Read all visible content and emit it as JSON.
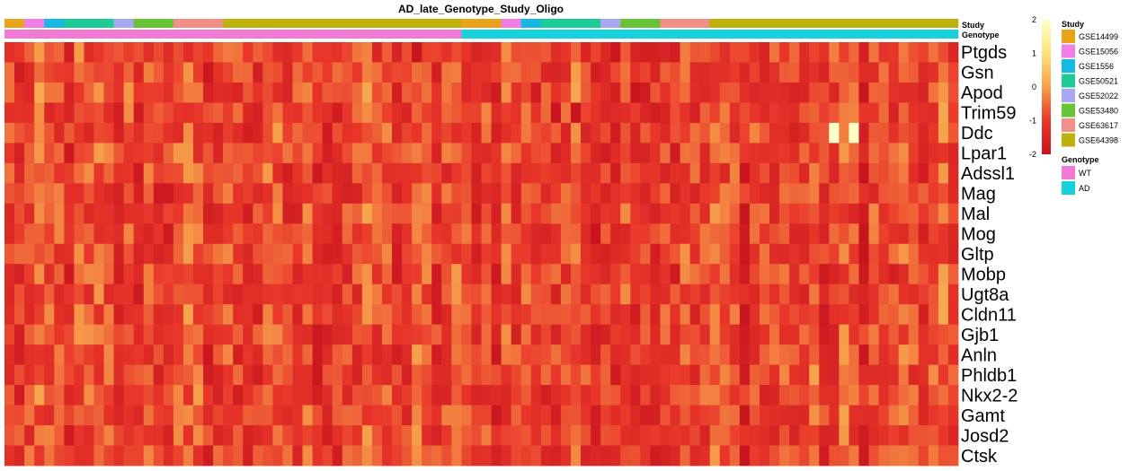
{
  "chart_data": {
    "type": "heatmap",
    "title": "AD_late_Genotype_Study_Oligo",
    "annotation_labels": {
      "study": "Study",
      "genotype": "Genotype"
    },
    "n_samples": 96,
    "genes": [
      "Ptgds",
      "Gsn",
      "Apod",
      "Trim59",
      "Ddc",
      "Lpar1",
      "Adssl1",
      "Mag",
      "Mal",
      "Mog",
      "Gltp",
      "Mobp",
      "Ugt8a",
      "Cldn11",
      "Gjb1",
      "Anln",
      "Phldb1",
      "Nkx2-2",
      "Gamt",
      "Josd2",
      "Ctsk"
    ],
    "study_segments": [
      {
        "study": "GSE14499",
        "count": 2
      },
      {
        "study": "GSE15056",
        "count": 2
      },
      {
        "study": "GSE1556",
        "count": 2
      },
      {
        "study": "GSE50521",
        "count": 5
      },
      {
        "study": "GSE52022",
        "count": 2
      },
      {
        "study": "GSE53480",
        "count": 4
      },
      {
        "study": "GSE63617",
        "count": 5
      },
      {
        "study": "GSE64398",
        "count": 24
      },
      {
        "study": "GSE14499",
        "count": 4
      },
      {
        "study": "GSE15056",
        "count": 2
      },
      {
        "study": "GSE1556",
        "count": 2
      },
      {
        "study": "GSE50521",
        "count": 6
      },
      {
        "study": "GSE52022",
        "count": 2
      },
      {
        "study": "GSE53480",
        "count": 4
      },
      {
        "study": "GSE63617",
        "count": 5
      },
      {
        "study": "GSE64398",
        "count": 25
      }
    ],
    "genotype_segments": [
      {
        "genotype": "WT",
        "count": 46
      },
      {
        "genotype": "AD",
        "count": 50
      }
    ],
    "color_scale": {
      "min": -2,
      "max": 2,
      "ticks": [
        2,
        1,
        0,
        -1,
        -2
      ],
      "stops": [
        {
          "value": -2,
          "color": "#c8141e"
        },
        {
          "value": -1,
          "color": "#e8362a"
        },
        {
          "value": 0,
          "color": "#f7a04a"
        },
        {
          "value": 1,
          "color": "#fde27d"
        },
        {
          "value": 2,
          "color": "#ffffcc"
        }
      ]
    },
    "legends": {
      "study": {
        "title": "Study",
        "items": [
          {
            "label": "GSE14499",
            "color": "#e8a318"
          },
          {
            "label": "GSE15056",
            "color": "#f07ee6"
          },
          {
            "label": "GSE1556",
            "color": "#16b8e4"
          },
          {
            "label": "GSE50521",
            "color": "#1dcb96"
          },
          {
            "label": "GSE52022",
            "color": "#a9a7f0"
          },
          {
            "label": "GSE53480",
            "color": "#66c436"
          },
          {
            "label": "GSE63617",
            "color": "#f29088"
          },
          {
            "label": "GSE64398",
            "color": "#bdb20c"
          }
        ]
      },
      "genotype": {
        "title": "Genotype",
        "items": [
          {
            "label": "WT",
            "color": "#f17ad4"
          },
          {
            "label": "AD",
            "color": "#17d2dc"
          }
        ]
      }
    },
    "notable_values": [
      {
        "gene": "Ddc",
        "sample": 83,
        "value": 2.0
      },
      {
        "gene": "Ddc",
        "sample": 85,
        "value": 1.9
      },
      {
        "gene": "Trim59",
        "sample": 55,
        "value": -2.0
      },
      {
        "gene": "Trim59",
        "sample": 57,
        "value": -2.0
      },
      {
        "gene": "Ptgds",
        "sample": 41,
        "value": -2.0
      }
    ]
  }
}
